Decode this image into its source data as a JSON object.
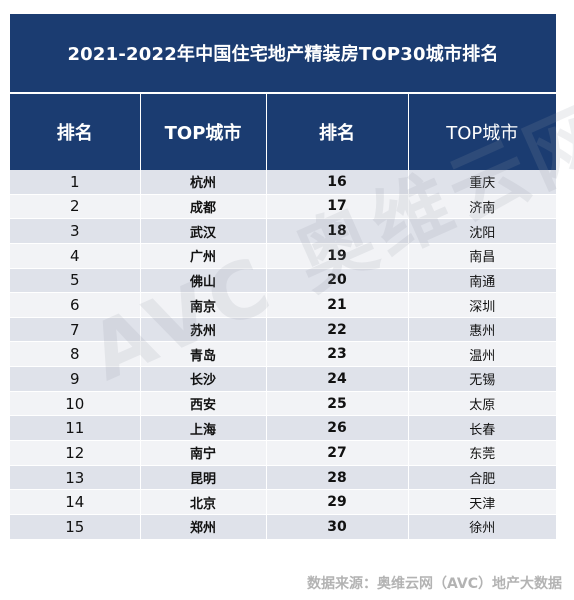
{
  "title": "2021-2022年中国住宅地产精装房TOP30城市排名",
  "headers": [
    "排名",
    "TOP城市",
    "排名",
    "TOP城市"
  ],
  "rows": [
    {
      "rank_a": "1",
      "city_a": "杭州",
      "rank_b": "16",
      "city_b": "重庆"
    },
    {
      "rank_a": "2",
      "city_a": "成都",
      "rank_b": "17",
      "city_b": "济南"
    },
    {
      "rank_a": "3",
      "city_a": "武汉",
      "rank_b": "18",
      "city_b": "沈阳"
    },
    {
      "rank_a": "4",
      "city_a": "广州",
      "rank_b": "19",
      "city_b": "南昌"
    },
    {
      "rank_a": "5",
      "city_a": "佛山",
      "rank_b": "20",
      "city_b": "南通"
    },
    {
      "rank_a": "6",
      "city_a": "南京",
      "rank_b": "21",
      "city_b": "深圳"
    },
    {
      "rank_a": "7",
      "city_a": "苏州",
      "rank_b": "22",
      "city_b": "惠州"
    },
    {
      "rank_a": "8",
      "city_a": "青岛",
      "rank_b": "23",
      "city_b": "温州"
    },
    {
      "rank_a": "9",
      "city_a": "长沙",
      "rank_b": "24",
      "city_b": "无锡"
    },
    {
      "rank_a": "10",
      "city_a": "西安",
      "rank_b": "25",
      "city_b": "太原"
    },
    {
      "rank_a": "11",
      "city_a": "上海",
      "rank_b": "26",
      "city_b": "长春"
    },
    {
      "rank_a": "12",
      "city_a": "南宁",
      "rank_b": "27",
      "city_b": "东莞"
    },
    {
      "rank_a": "13",
      "city_a": "昆明",
      "rank_b": "28",
      "city_b": "合肥"
    },
    {
      "rank_a": "14",
      "city_a": "北京",
      "rank_b": "29",
      "city_b": "天津"
    },
    {
      "rank_a": "15",
      "city_a": "郑州",
      "rank_b": "30",
      "city_b": "徐州"
    }
  ],
  "watermark": "AVC 奥维云网",
  "source": "数据来源：奥维云网（AVC）地产大数据",
  "colors": {
    "header_bg": "#1b3c71",
    "row_odd": "#dfe2ea",
    "row_even": "#f2f3f6",
    "source_text": "#b3b3b3"
  }
}
